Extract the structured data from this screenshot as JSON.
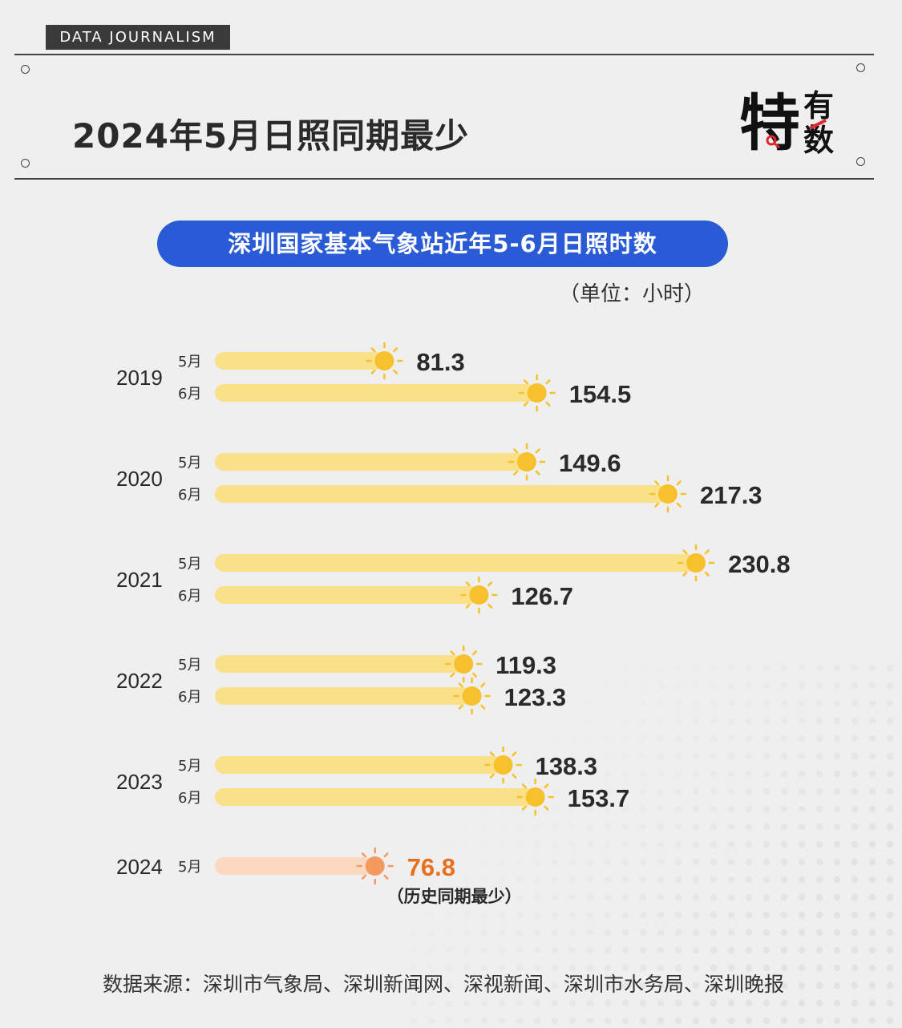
{
  "header": {
    "tag": "DATA  JOURNALISM",
    "title": "2024年5月日照同期最少",
    "logo_text": "特有数"
  },
  "chart_title": "深圳国家基本气象站近年5-6月日照时数",
  "unit": "（单位：小时）",
  "source": "数据来源：深圳市气象局、深圳新闻网、深视新闻、深圳市水务局、深圳晚报",
  "note": "（历史同期最少）",
  "colors": {
    "bar": "#fbe08a",
    "sun": "#f6c12c",
    "highlight_bar": "#fbd9c0",
    "highlight_sun": "#f59a5e",
    "highlight_text": "#e8701d",
    "pill": "#2a5bd7"
  },
  "chart_data": {
    "type": "bar",
    "orientation": "horizontal",
    "title": "深圳国家基本气象站近年5-6月日照时数",
    "unit": "（单位：小时）",
    "groups": [
      {
        "year": "2019",
        "bars": [
          {
            "month": "5月",
            "value": 81.3,
            "label": "81.3"
          },
          {
            "month": "6月",
            "value": 154.5,
            "label": "154.5"
          }
        ]
      },
      {
        "year": "2020",
        "bars": [
          {
            "month": "5月",
            "value": 149.6,
            "label": "149.6"
          },
          {
            "month": "6月",
            "value": 217.3,
            "label": "217.3"
          }
        ]
      },
      {
        "year": "2021",
        "bars": [
          {
            "month": "5月",
            "value": 230.8,
            "label": "230.8"
          },
          {
            "month": "6月",
            "value": 126.7,
            "label": "126.7"
          }
        ]
      },
      {
        "year": "2022",
        "bars": [
          {
            "month": "5月",
            "value": 119.3,
            "label": "119.3"
          },
          {
            "month": "6月",
            "value": 123.3,
            "label": "123.3"
          }
        ]
      },
      {
        "year": "2023",
        "bars": [
          {
            "month": "5月",
            "value": 138.3,
            "label": "138.3"
          },
          {
            "month": "6月",
            "value": 153.7,
            "label": "153.7"
          }
        ]
      },
      {
        "year": "2024",
        "bars": [
          {
            "month": "5月",
            "value": 76.8,
            "label": "76.8",
            "highlight": true
          }
        ]
      }
    ]
  }
}
